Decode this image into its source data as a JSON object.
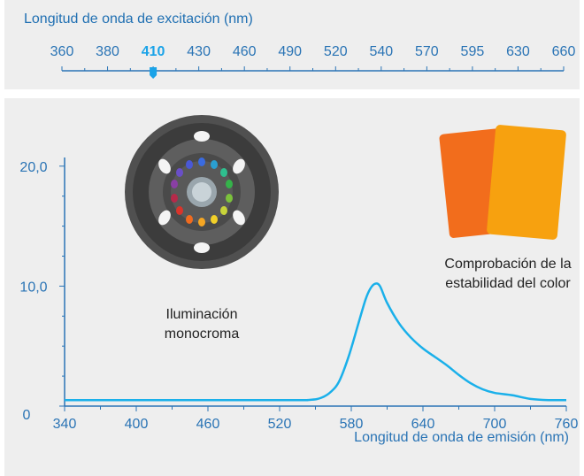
{
  "excitation": {
    "title": "Longitud de onda de excitación (nm)",
    "ticks": [
      "360",
      "380",
      "410",
      "430",
      "460",
      "490",
      "520",
      "540",
      "570",
      "595",
      "630",
      "660"
    ],
    "selected": "410"
  },
  "captions": {
    "lamp": [
      "Iluminación",
      "monocroma"
    ],
    "swatch": [
      "Comprobación de la",
      "estabilidad del color"
    ]
  },
  "chart_data": {
    "type": "line",
    "xlabel": "Longitud de onda de emisión (nm)",
    "ylabel": "",
    "x_ticks": [
      "340",
      "400",
      "460",
      "520",
      "580",
      "640",
      "700",
      "760"
    ],
    "y_ticks": [
      "0",
      "10,0",
      "20,0"
    ],
    "xlim": [
      340,
      760
    ],
    "ylim": [
      0,
      20.5
    ],
    "series": [
      {
        "color": "#1ab0ea",
        "points": [
          [
            340,
            0.5
          ],
          [
            520,
            0.5
          ],
          [
            545,
            0.52
          ],
          [
            555,
            0.7
          ],
          [
            563,
            1.2
          ],
          [
            570,
            2.1
          ],
          [
            578,
            4.2
          ],
          [
            586,
            6.9
          ],
          [
            592,
            8.9
          ],
          [
            596,
            9.8
          ],
          [
            600,
            10.2
          ],
          [
            604,
            10.0
          ],
          [
            610,
            8.6
          ],
          [
            620,
            6.9
          ],
          [
            630,
            5.7
          ],
          [
            640,
            4.8
          ],
          [
            650,
            4.1
          ],
          [
            660,
            3.4
          ],
          [
            670,
            2.6
          ],
          [
            680,
            1.9
          ],
          [
            690,
            1.4
          ],
          [
            700,
            1.1
          ],
          [
            715,
            0.9
          ],
          [
            730,
            0.6
          ],
          [
            745,
            0.5
          ],
          [
            760,
            0.5
          ]
        ]
      }
    ]
  },
  "colors": {
    "accent": "#1aa3e8",
    "axis": "#2a74b5",
    "panel_bg": "#eeeeee",
    "swatch_front": "#f7a10f",
    "swatch_back": "#f26d1c"
  },
  "icons": {
    "lamp": "monochrome-illumination-lamp-icon",
    "swatch": "color-stability-swatch-icon"
  }
}
